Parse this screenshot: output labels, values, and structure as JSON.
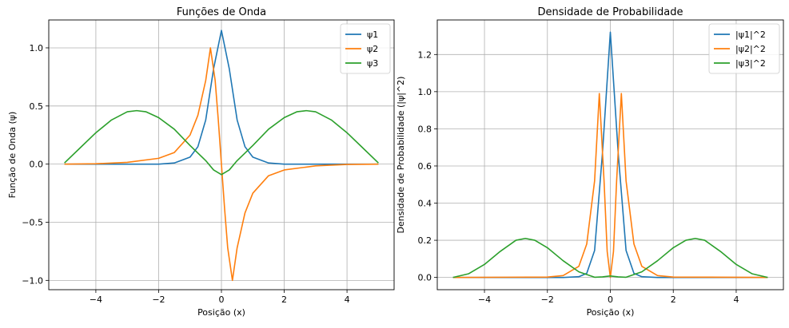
{
  "chart_data": [
    {
      "type": "line",
      "title": "Funções de Onda",
      "xlabel": "Posição (x)",
      "ylabel": "Função de Onda (ψ)",
      "xlim": [
        -5.5,
        5.5
      ],
      "ylim": [
        -1.08,
        1.24
      ],
      "xticks": [
        -4,
        -2,
        0,
        2,
        4
      ],
      "yticks": [
        -1.0,
        -0.5,
        0.0,
        0.5,
        1.0
      ],
      "xtick_labels": [
        "−4",
        "−2",
        "0",
        "2",
        "4"
      ],
      "ytick_labels": [
        "−1.0",
        "−0.5",
        "0.0",
        "0.5",
        "1.0"
      ],
      "grid": true,
      "legend_position": "top-right",
      "series": [
        {
          "name": "ψ1",
          "color": "#1f77b4",
          "x": [
            -5,
            -2,
            -1.5,
            -1,
            -0.75,
            -0.5,
            -0.25,
            0,
            0.25,
            0.5,
            0.75,
            1,
            1.5,
            2,
            5
          ],
          "y": [
            0,
            0,
            0.01,
            0.06,
            0.15,
            0.38,
            0.82,
            1.15,
            0.82,
            0.38,
            0.15,
            0.06,
            0.01,
            0,
            0
          ]
        },
        {
          "name": "ψ2",
          "color": "#ff7f0e",
          "x": [
            -5,
            -4,
            -3,
            -2,
            -1.5,
            -1,
            -0.75,
            -0.5,
            -0.35,
            -0.2,
            -0.1,
            0,
            0.1,
            0.2,
            0.35,
            0.5,
            0.75,
            1,
            1.5,
            2,
            3,
            4,
            5
          ],
          "y": [
            0,
            0.003,
            0.015,
            0.05,
            0.1,
            0.25,
            0.42,
            0.72,
            1.0,
            0.72,
            0.38,
            0,
            -0.38,
            -0.72,
            -1.0,
            -0.72,
            -0.42,
            -0.25,
            -0.1,
            -0.05,
            -0.015,
            -0.003,
            0
          ]
        },
        {
          "name": "ψ3",
          "color": "#2ca02c",
          "x": [
            -5,
            -4.5,
            -4,
            -3.5,
            -3,
            -2.7,
            -2.4,
            -2,
            -1.5,
            -1,
            -0.5,
            -0.25,
            0,
            0.25,
            0.5,
            1,
            1.5,
            2,
            2.4,
            2.7,
            3,
            3.5,
            4,
            4.5,
            5
          ],
          "y": [
            0.01,
            0.14,
            0.27,
            0.38,
            0.45,
            0.46,
            0.45,
            0.4,
            0.3,
            0.16,
            0.03,
            -0.05,
            -0.09,
            -0.05,
            0.03,
            0.16,
            0.3,
            0.4,
            0.45,
            0.46,
            0.45,
            0.38,
            0.27,
            0.14,
            0.01
          ]
        }
      ]
    },
    {
      "type": "line",
      "title": "Densidade de Probabilidade",
      "xlabel": "Posição (x)",
      "ylabel": "Densidade de Probabilidade (|ψ|^2)",
      "xlim": [
        -5.5,
        5.5
      ],
      "ylim": [
        -0.066,
        1.386
      ],
      "xticks": [
        -4,
        -2,
        0,
        2,
        4
      ],
      "yticks": [
        0.0,
        0.2,
        0.4,
        0.6,
        0.8,
        1.0,
        1.2
      ],
      "xtick_labels": [
        "−4",
        "−2",
        "0",
        "2",
        "4"
      ],
      "ytick_labels": [
        "0.0",
        "0.2",
        "0.4",
        "0.6",
        "0.8",
        "1.0",
        "1.2"
      ],
      "grid": true,
      "legend_position": "top-right",
      "series": [
        {
          "name": "|ψ1|^2",
          "color": "#1f77b4",
          "x": [
            -5,
            -1.5,
            -1,
            -0.75,
            -0.5,
            -0.25,
            0,
            0.25,
            0.5,
            0.75,
            1,
            1.5,
            5
          ],
          "y": [
            0,
            0,
            0.004,
            0.022,
            0.145,
            0.67,
            1.32,
            0.67,
            0.145,
            0.022,
            0.004,
            0,
            0
          ]
        },
        {
          "name": "|ψ2|^2",
          "color": "#ff7f0e",
          "x": [
            -5,
            -2,
            -1.5,
            -1,
            -0.75,
            -0.5,
            -0.35,
            -0.2,
            -0.1,
            0,
            0.1,
            0.2,
            0.35,
            0.5,
            0.75,
            1,
            1.5,
            2,
            5
          ],
          "y": [
            0,
            0.002,
            0.01,
            0.06,
            0.18,
            0.52,
            0.99,
            0.52,
            0.14,
            0,
            0.14,
            0.52,
            0.99,
            0.52,
            0.18,
            0.06,
            0.01,
            0.002,
            0
          ]
        },
        {
          "name": "|ψ3|^2",
          "color": "#2ca02c",
          "x": [
            -5,
            -4.5,
            -4,
            -3.5,
            -3,
            -2.7,
            -2.4,
            -2,
            -1.5,
            -1,
            -0.5,
            -0.25,
            0,
            0.25,
            0.5,
            1,
            1.5,
            2,
            2.4,
            2.7,
            3,
            3.5,
            4,
            4.5,
            5
          ],
          "y": [
            0,
            0.02,
            0.07,
            0.14,
            0.2,
            0.21,
            0.2,
            0.16,
            0.09,
            0.03,
            0.001,
            0.003,
            0.008,
            0.003,
            0.001,
            0.03,
            0.09,
            0.16,
            0.2,
            0.21,
            0.2,
            0.14,
            0.07,
            0.02,
            0
          ]
        }
      ]
    }
  ]
}
